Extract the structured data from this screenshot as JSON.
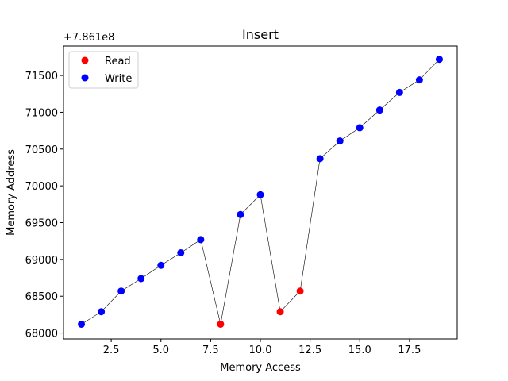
{
  "chart_data": {
    "type": "scatter",
    "title": "Insert",
    "xlabel": "Memory Access",
    "ylabel": "Memory Address",
    "offset_label": "+7.861e8",
    "xlim": [
      0.1,
      19.9
    ],
    "ylim": [
      67920,
      71900
    ],
    "xticks": [
      2.5,
      5.0,
      7.5,
      10.0,
      12.5,
      15.0,
      17.5
    ],
    "xtick_labels": [
      "2.5",
      "5.0",
      "7.5",
      "10.0",
      "12.5",
      "15.0",
      "17.5"
    ],
    "yticks": [
      68000,
      68500,
      69000,
      69500,
      70000,
      70500,
      71000,
      71500
    ],
    "ytick_labels": [
      "68000",
      "68500",
      "69000",
      "69500",
      "70000",
      "70500",
      "71000",
      "71500"
    ],
    "grid": false,
    "legend_position": "top-left",
    "connecting_line": {
      "color": "#000000"
    },
    "series": [
      {
        "name": "Read",
        "color": "#ff0000",
        "x": [
          8,
          11,
          12
        ],
        "y": [
          68120,
          68290,
          68570
        ]
      },
      {
        "name": "Write",
        "color": "#0000ff",
        "x": [
          1,
          2,
          3,
          4,
          5,
          6,
          7,
          9,
          10,
          13,
          14,
          15,
          16,
          17,
          18,
          19
        ],
        "y": [
          68120,
          68290,
          68570,
          68740,
          68920,
          69090,
          69270,
          69610,
          69880,
          70370,
          70610,
          70790,
          71030,
          71270,
          71440,
          71720
        ]
      }
    ],
    "sequence": {
      "x": [
        1,
        2,
        3,
        4,
        5,
        6,
        7,
        8,
        9,
        10,
        11,
        12,
        13,
        14,
        15,
        16,
        17,
        18,
        19
      ],
      "y": [
        68120,
        68290,
        68570,
        68740,
        68920,
        69090,
        69270,
        68120,
        69610,
        69880,
        68290,
        68570,
        70370,
        70610,
        70790,
        71030,
        71270,
        71440,
        71720
      ]
    }
  }
}
